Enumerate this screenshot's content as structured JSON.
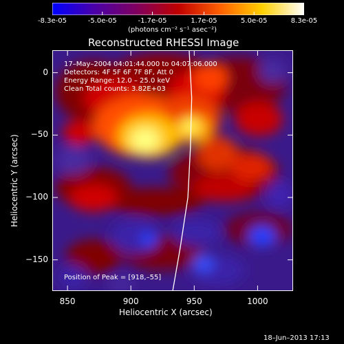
{
  "colorbar": {
    "ticks": [
      "-8.3e-05",
      "-5.0e-05",
      "-1.7e-05",
      "1.7e-05",
      "5.0e-05",
      "8.3e-05"
    ],
    "tick_values": [
      -8.3e-05,
      -5e-05,
      -1.7e-05,
      1.7e-05,
      5e-05,
      8.3e-05
    ],
    "range": [
      -8.3e-05,
      8.3e-05
    ],
    "unit": "(photons cm⁻² s⁻¹ asec⁻²)",
    "colors": [
      "#0000ff",
      "#4a00a8",
      "#800060",
      "#c00000",
      "#ff6000",
      "#ffd000",
      "#ffffff"
    ]
  },
  "chart_data": {
    "type": "heatmap",
    "title": "Reconstructed RHESSI Image",
    "xlabel": "Heliocentric X (arcsec)",
    "ylabel": "Heliocentric Y (arcsec)",
    "xlim": [
      838,
      1028
    ],
    "ylim": [
      -175,
      18
    ],
    "xticks": [
      850,
      900,
      950,
      1000
    ],
    "yticks": [
      0,
      -50,
      -100,
      -150
    ],
    "xtick_labels": [
      "850",
      "900",
      "950",
      "1000"
    ],
    "ytick_labels": [
      "0",
      "−50",
      "−100",
      "−150"
    ],
    "annotations": [
      "17–May–2004 04:01:44.000 to 04:07:06.000",
      "Detectors: 4F 5F 6F 7F 8F, Att 0",
      "Energy Range: 12.0 – 25.0 keV",
      "Clean    Total counts: 3.82E+03"
    ],
    "peak_label": "Position of Peak = [918,–55]",
    "peak": [
      918,
      -55
    ],
    "limb_curve": [
      [
        946,
        18
      ],
      [
        948,
        -20
      ],
      [
        947,
        -60
      ],
      [
        945,
        -100
      ],
      [
        939,
        -140
      ],
      [
        933,
        -175
      ]
    ]
  },
  "footer": {
    "timestamp": "18–Jun–2013 17:13"
  }
}
